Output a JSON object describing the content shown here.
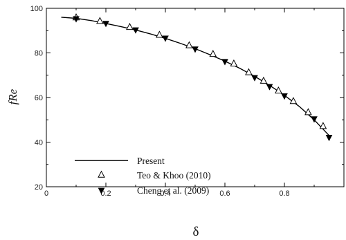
{
  "chart_data": {
    "type": "scatter",
    "xlabel": "δ",
    "ylabel": "fRe",
    "xlim": [
      0,
      1
    ],
    "ylim": [
      20,
      100
    ],
    "xticks": [
      0,
      0.2,
      0.4,
      0.6,
      0.8
    ],
    "xtick_labels": [
      "0",
      "0.2",
      "0.4",
      "0.6",
      "0.8"
    ],
    "yticks": [
      20,
      40,
      60,
      80,
      100
    ],
    "ytick_labels": [
      "20",
      "40",
      "60",
      "80",
      "100"
    ],
    "grid": false,
    "legend_position": "bottom-left",
    "series": [
      {
        "name": "Present",
        "style": "line",
        "color": "#000000",
        "x": [
          0.05,
          0.1,
          0.15,
          0.2,
          0.25,
          0.3,
          0.35,
          0.4,
          0.45,
          0.5,
          0.55,
          0.6,
          0.65,
          0.7,
          0.75,
          0.8,
          0.85,
          0.9,
          0.95
        ],
        "y": [
          96.0,
          95.5,
          94.5,
          93.2,
          91.8,
          90.3,
          88.5,
          86.5,
          84.3,
          81.9,
          79.2,
          76.3,
          73.1,
          69.5,
          65.5,
          61.0,
          56.0,
          50.0,
          43.0
        ]
      },
      {
        "name": "Teo & Khoo (2010)",
        "style": "marker",
        "marker": "open-triangle-up",
        "color": "#000000",
        "x": [
          0.1,
          0.18,
          0.28,
          0.38,
          0.48,
          0.56,
          0.63,
          0.68,
          0.73,
          0.78,
          0.83,
          0.88,
          0.93
        ],
        "y": [
          95.8,
          94.2,
          91.5,
          88.0,
          83.3,
          79.4,
          75.1,
          71.2,
          67.4,
          63.0,
          58.3,
          53.3,
          47.1
        ]
      },
      {
        "name": "Cheng et al. (2009)",
        "style": "marker",
        "marker": "filled-triangle-down",
        "color": "#000000",
        "x": [
          0.1,
          0.2,
          0.3,
          0.4,
          0.5,
          0.6,
          0.7,
          0.75,
          0.8,
          0.9,
          0.95
        ],
        "y": [
          95.4,
          93.3,
          90.4,
          86.7,
          81.8,
          76.2,
          69.0,
          65.0,
          60.8,
          50.5,
          42.2
        ]
      }
    ]
  }
}
